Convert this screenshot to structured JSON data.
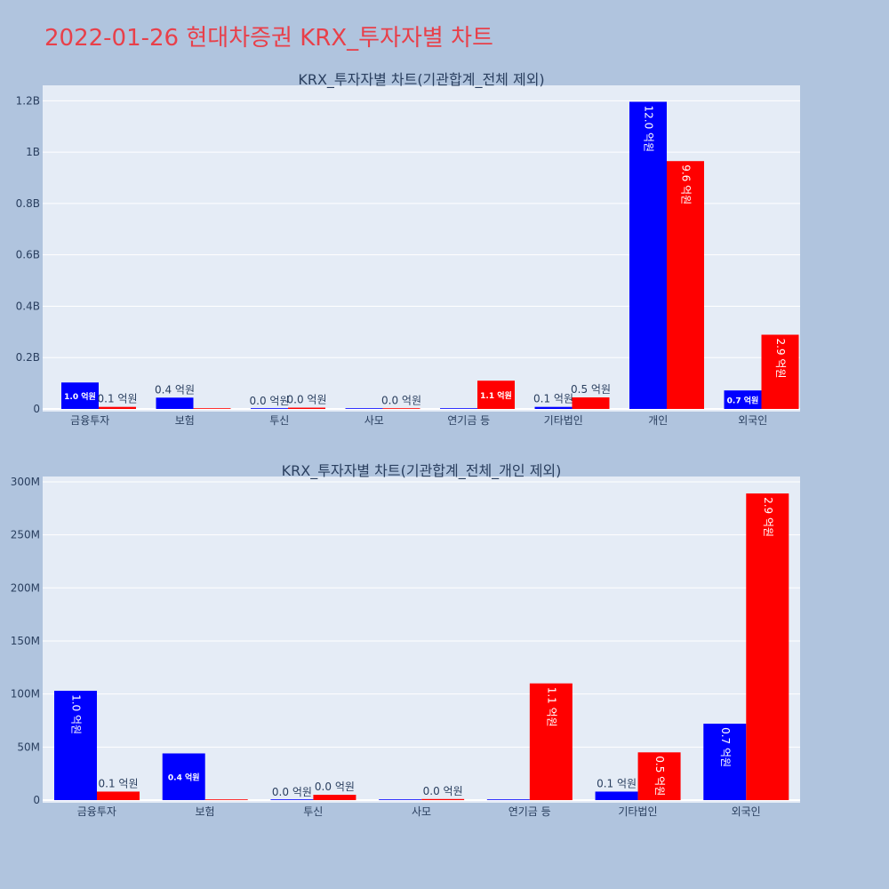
{
  "title": "2022-01-26 현대차증권 KRX_투자자별 차트",
  "colors": {
    "background": "#b0c4de",
    "plot_bg": "#e5ecf6",
    "series_a": "#0000ff",
    "series_b": "#ff0000",
    "title": "#e8404a"
  },
  "chart_data": [
    {
      "type": "bar",
      "title": "KRX_투자자별 차트(기관합계_전체 제외)",
      "categories": [
        "금융투자",
        "보험",
        "투신",
        "사모",
        "연기금 등",
        "기타법인",
        "개인",
        "외국인"
      ],
      "series": [
        {
          "color": "#0000ff",
          "values": [
            103000000,
            44000000,
            0,
            0,
            0,
            8000000,
            1196000000,
            72000000
          ],
          "labels": [
            "1.0 억원",
            "0.4 억원",
            "0.0 억원",
            "",
            "",
            "0.1 억원",
            "12.0 억원",
            "0.7 억원"
          ]
        },
        {
          "color": "#ff0000",
          "values": [
            8000000,
            0,
            5000000,
            1000000,
            110000000,
            45000000,
            965000000,
            289000000
          ],
          "labels": [
            "0.1 억원",
            "",
            "0.0 억원",
            "0.0 억원",
            "1.1 억원",
            "0.5 억원",
            "9.6 억원",
            "2.9 억원"
          ]
        }
      ],
      "ylim": [
        0,
        1260000000
      ],
      "yticks": [
        0,
        200000000,
        400000000,
        600000000,
        800000000,
        1000000000,
        1200000000
      ],
      "ytick_labels": [
        "0",
        "0.2B",
        "0.4B",
        "0.6B",
        "0.8B",
        "1B",
        "1.2B"
      ]
    },
    {
      "type": "bar",
      "title": "KRX_투자자별 차트(기관합계_전체_개인 제외)",
      "categories": [
        "금융투자",
        "보험",
        "투신",
        "사모",
        "연기금 등",
        "기타법인",
        "외국인"
      ],
      "series": [
        {
          "color": "#0000ff",
          "values": [
            103000000,
            44000000,
            0,
            0,
            0,
            8000000,
            72000000
          ],
          "labels": [
            "1.0 억원",
            "0.4 억원",
            "0.0 억원",
            "",
            "",
            "0.1 억원",
            "0.7 억원"
          ]
        },
        {
          "color": "#ff0000",
          "values": [
            8000000,
            0,
            5000000,
            1000000,
            110000000,
            45000000,
            289000000
          ],
          "labels": [
            "0.1 억원",
            "",
            "0.0 억원",
            "0.0 억원",
            "1.1 억원",
            "0.5 억원",
            "2.9 억원"
          ]
        }
      ],
      "ylim": [
        0,
        305000000
      ],
      "yticks": [
        0,
        50000000,
        100000000,
        150000000,
        200000000,
        250000000,
        300000000
      ],
      "ytick_labels": [
        "0",
        "50M",
        "100M",
        "150M",
        "200M",
        "250M",
        "300M"
      ]
    }
  ]
}
